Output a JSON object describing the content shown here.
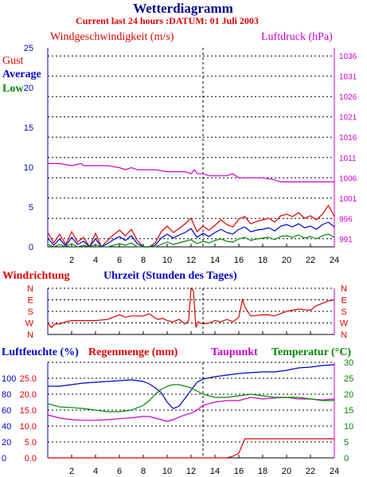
{
  "header": {
    "title": "Wetterdiagramm",
    "subtitle": "Current last 24 hours :DATUM: 01 Juli 2003"
  },
  "colors": {
    "red": "#dd0000",
    "blue": "#0000cc",
    "green": "#008800",
    "magenta": "#cc00cc",
    "navy": "#000088",
    "black": "#000000"
  },
  "chart_data": [
    {
      "type": "line",
      "id": "wind",
      "title": "",
      "ylabel": "Windgeschwindigkeit (m/s)",
      "y2label": "Luftdruck (hPa)",
      "legend": [
        "Gust",
        "Average",
        "Low"
      ],
      "xlim": [
        0,
        24
      ],
      "x_ticks": [
        2,
        4,
        6,
        8,
        10,
        12,
        14,
        16,
        18,
        20,
        22,
        24
      ],
      "ylim": [
        0,
        25
      ],
      "y_ticks": [
        0,
        5,
        10,
        15,
        20,
        25
      ],
      "y2lim": [
        989,
        1038
      ],
      "y2_ticks": [
        991,
        996,
        1001,
        1006,
        1011,
        1016,
        1021,
        1026,
        1031,
        1036
      ],
      "grid": true,
      "series": [
        {
          "name": "Gust",
          "color": "#dd0000",
          "x": [
            0,
            0.5,
            1,
            1.5,
            2,
            2.5,
            3,
            3.5,
            4,
            4.5,
            5,
            5.5,
            6,
            6.5,
            7,
            7.5,
            8,
            8.5,
            9,
            9.5,
            10,
            10.5,
            11,
            11.5,
            12,
            12.5,
            13,
            13.5,
            14,
            14.5,
            15,
            15.5,
            16,
            16.5,
            17,
            17.5,
            18,
            18.5,
            19,
            19.5,
            20,
            20.5,
            21,
            21.5,
            22,
            22.5,
            23,
            23.5,
            24
          ],
          "values": [
            1.8,
            0.5,
            1.6,
            0.3,
            1.9,
            0.6,
            1.2,
            0,
            1.7,
            0,
            0.8,
            1.5,
            2.1,
            1.4,
            2.2,
            0.8,
            0,
            0,
            0.5,
            1.9,
            2.6,
            1.8,
            2.3,
            2.9,
            3.6,
            1.9,
            2.6,
            2.1,
            2.7,
            3.4,
            2.8,
            2.5,
            3.5,
            3.8,
            2.9,
            3.2,
            3.4,
            3.6,
            3.1,
            3.9,
            4.1,
            3.8,
            4.3,
            3.6,
            3.9,
            3.4,
            4.1,
            5.2,
            3.8
          ]
        },
        {
          "name": "Average",
          "color": "#0000cc",
          "x": [
            0,
            0.5,
            1,
            1.5,
            2,
            2.5,
            3,
            3.5,
            4,
            4.5,
            5,
            5.5,
            6,
            6.5,
            7,
            7.5,
            8,
            8.5,
            9,
            9.5,
            10,
            10.5,
            11,
            11.5,
            12,
            12.5,
            13,
            13.5,
            14,
            14.5,
            15,
            15.5,
            16,
            16.5,
            17,
            17.5,
            18,
            18.5,
            19,
            19.5,
            20,
            20.5,
            21,
            21.5,
            22,
            22.5,
            23,
            23.5,
            24
          ],
          "values": [
            1.1,
            0.2,
            1,
            0.1,
            1.2,
            0.3,
            0.7,
            0,
            1,
            0,
            0.4,
            0.9,
            1.3,
            0.8,
            1.4,
            0.4,
            0,
            0,
            0.2,
            1.1,
            1.6,
            1.1,
            1.5,
            1.8,
            2.3,
            1.2,
            1.7,
            1.3,
            1.8,
            2.2,
            1.8,
            1.6,
            2.2,
            2.5,
            1.9,
            2.1,
            2.2,
            2.4,
            2,
            2.6,
            2.8,
            2.5,
            2.9,
            2.4,
            2.6,
            2.2,
            2.8,
            3.1,
            2.5
          ]
        },
        {
          "name": "Low",
          "color": "#008800",
          "x": [
            0,
            0.5,
            1,
            1.5,
            2,
            2.5,
            3,
            3.5,
            4,
            4.5,
            5,
            5.5,
            6,
            6.5,
            7,
            7.5,
            8,
            8.5,
            9,
            9.5,
            10,
            10.5,
            11,
            11.5,
            12,
            12.5,
            13,
            13.5,
            14,
            14.5,
            15,
            15.5,
            16,
            16.5,
            17,
            17.5,
            18,
            18.5,
            19,
            19.5,
            20,
            20.5,
            21,
            21.5,
            22,
            22.5,
            23,
            23.5,
            24
          ],
          "values": [
            0.3,
            0,
            0.3,
            0,
            0.4,
            0,
            0.2,
            0,
            0.3,
            0,
            0,
            0.2,
            0.4,
            0.2,
            0.5,
            0,
            0,
            0,
            0,
            0.3,
            0.6,
            0.3,
            0.5,
            0.7,
            0.9,
            0.4,
            0.7,
            0.5,
            0.8,
            1,
            0.7,
            0.6,
            1,
            1.2,
            0.8,
            1,
            1.1,
            1.2,
            0.9,
            1.3,
            1.4,
            1.2,
            1.5,
            1.1,
            1.3,
            1,
            1.4,
            1.6,
            1.2
          ]
        },
        {
          "name": "Luftdruck",
          "axis": "y2",
          "color": "#cc00cc",
          "x": [
            0,
            1,
            2,
            2.8,
            3,
            4,
            5,
            6,
            6.5,
            7,
            7.5,
            8,
            9,
            10,
            11,
            11.5,
            12,
            12.3,
            12.5,
            13,
            13.5,
            14,
            15,
            15.5,
            16,
            17,
            18,
            19,
            19.5,
            20,
            21,
            22,
            23,
            24
          ],
          "values": [
            1009.5,
            1009.5,
            1009,
            1009.5,
            1009,
            1009,
            1009,
            1008.5,
            1008,
            1008.5,
            1008,
            1008,
            1008,
            1007.5,
            1007.5,
            1007.5,
            1007,
            1008,
            1007,
            1007,
            1006.5,
            1006.5,
            1006.5,
            1007,
            1006,
            1006,
            1006,
            1005.5,
            1005,
            1005,
            1005,
            1005,
            1005,
            1005
          ]
        }
      ]
    },
    {
      "type": "line",
      "id": "winddir",
      "title": "",
      "ylabel": "Windrichtung",
      "xlabel": "Uhrzeit (Stunden des Tages)",
      "xlim": [
        0,
        24
      ],
      "y_ticks": [
        "N",
        "W",
        "S",
        "E",
        "N"
      ],
      "grid": true,
      "series": [
        {
          "name": "Windrichtung",
          "color": "#dd0000",
          "x": [
            0,
            0.3,
            0.6,
            1,
            1.5,
            2,
            3,
            4,
            5,
            6,
            6.5,
            7,
            8,
            8.5,
            9,
            9.3,
            9.6,
            10,
            10.5,
            11,
            11.5,
            11.8,
            12,
            12.2,
            12.4,
            12.6,
            13,
            13.5,
            14,
            14.5,
            15,
            15.5,
            16,
            16.3,
            16.6,
            17,
            18,
            18.5,
            19,
            20,
            21,
            22,
            22.5,
            23,
            23.5,
            24
          ],
          "values": [
            1,
            0.6,
            0.9,
            0.9,
            1.1,
            1.2,
            1.2,
            1.2,
            1.3,
            1.7,
            1.5,
            1.6,
            1.6,
            1.8,
            1.4,
            1.3,
            1.4,
            1.2,
            1.1,
            1.3,
            0.9,
            1.2,
            4,
            3.8,
            0.6,
            1.1,
            0.9,
            1.0,
            1.2,
            1.1,
            1.3,
            1.1,
            1.5,
            3.0,
            2.2,
            1.6,
            1.7,
            1.7,
            1.6,
            2.0,
            2.2,
            2.1,
            2.5,
            2.7,
            2.9,
            3.0
          ]
        }
      ]
    },
    {
      "type": "line",
      "id": "humidity",
      "title": "",
      "ylabel": "Luftfeuchte (%)",
      "ylabel_rain": "Regenmenge (mm)",
      "label_dew": "Taupunkt",
      "y2label": "Temperatur (°C)",
      "xlim": [
        0,
        24
      ],
      "x_ticks": [
        2,
        4,
        6,
        8,
        10,
        12,
        14,
        16,
        18,
        20,
        22,
        24
      ],
      "ylim": [
        0,
        120
      ],
      "y_ticks_humidity": [
        0,
        20,
        40,
        60,
        80,
        100
      ],
      "y_ticks_rain": [
        "0.0",
        "5.0",
        "10.0",
        "15.0",
        "20.0",
        "25.0"
      ],
      "y2lim": [
        0,
        30
      ],
      "y2_ticks": [
        0,
        5,
        10,
        15,
        20,
        25,
        30
      ],
      "grid": true,
      "series": [
        {
          "name": "Luftfeuchte",
          "color": "#0000cc",
          "axis": "humidity",
          "x": [
            0,
            1,
            2,
            3,
            4,
            5,
            6,
            7,
            8,
            8.5,
            9,
            9.5,
            10,
            10.5,
            11,
            11.5,
            12,
            12.5,
            13,
            14,
            15,
            16,
            17,
            18,
            19,
            20,
            21,
            22,
            23,
            24
          ],
          "values": [
            90,
            90,
            92,
            94,
            95,
            96,
            97,
            98,
            96,
            93,
            88,
            82,
            70,
            62,
            65,
            75,
            85,
            95,
            99,
            102,
            104,
            106,
            107,
            108,
            108,
            110,
            113,
            114,
            116,
            117
          ]
        },
        {
          "name": "Regenmenge",
          "color": "#dd0000",
          "axis": "rain",
          "x": [
            0,
            13,
            14,
            15,
            15.5,
            16,
            16.5,
            17,
            18,
            19,
            20,
            21,
            22,
            23,
            24
          ],
          "values": [
            0,
            0,
            0,
            0,
            0.5,
            1.5,
            6,
            6,
            6,
            6,
            6,
            6,
            6,
            6,
            6
          ]
        },
        {
          "name": "Taupunkt",
          "color": "#cc00cc",
          "axis": "temperature",
          "x": [
            0,
            1,
            2,
            3,
            4,
            5,
            6,
            7,
            8,
            8.5,
            9,
            9.5,
            10,
            10.5,
            11,
            11.5,
            12,
            12.5,
            13,
            14,
            15,
            16,
            17,
            18,
            19,
            20,
            21,
            22,
            23,
            24
          ],
          "values": [
            13.5,
            12.5,
            12,
            11.8,
            11.8,
            12,
            12.3,
            12.6,
            13,
            13,
            12.5,
            12,
            11.5,
            12,
            12.8,
            13.5,
            14,
            15,
            16.5,
            17.5,
            18,
            18,
            19,
            18.5,
            18.8,
            19,
            18.5,
            18.5,
            18.2,
            18.5
          ]
        },
        {
          "name": "Temperatur",
          "color": "#008800",
          "axis": "temperature",
          "x": [
            0,
            1,
            2,
            3,
            4,
            5,
            6,
            7,
            8,
            8.5,
            9,
            9.5,
            10,
            10.5,
            11,
            11.5,
            12,
            12.5,
            13,
            14,
            15,
            16,
            17,
            18,
            19,
            20,
            21,
            22,
            23,
            24
          ],
          "values": [
            17,
            16,
            15.8,
            15.5,
            15,
            14.5,
            14.5,
            15,
            16.5,
            18,
            20,
            21.5,
            22.5,
            23,
            23,
            22.5,
            22,
            21,
            20,
            19,
            19,
            19.5,
            20,
            19.5,
            19,
            19,
            19,
            18.5,
            18,
            18
          ]
        }
      ]
    }
  ]
}
